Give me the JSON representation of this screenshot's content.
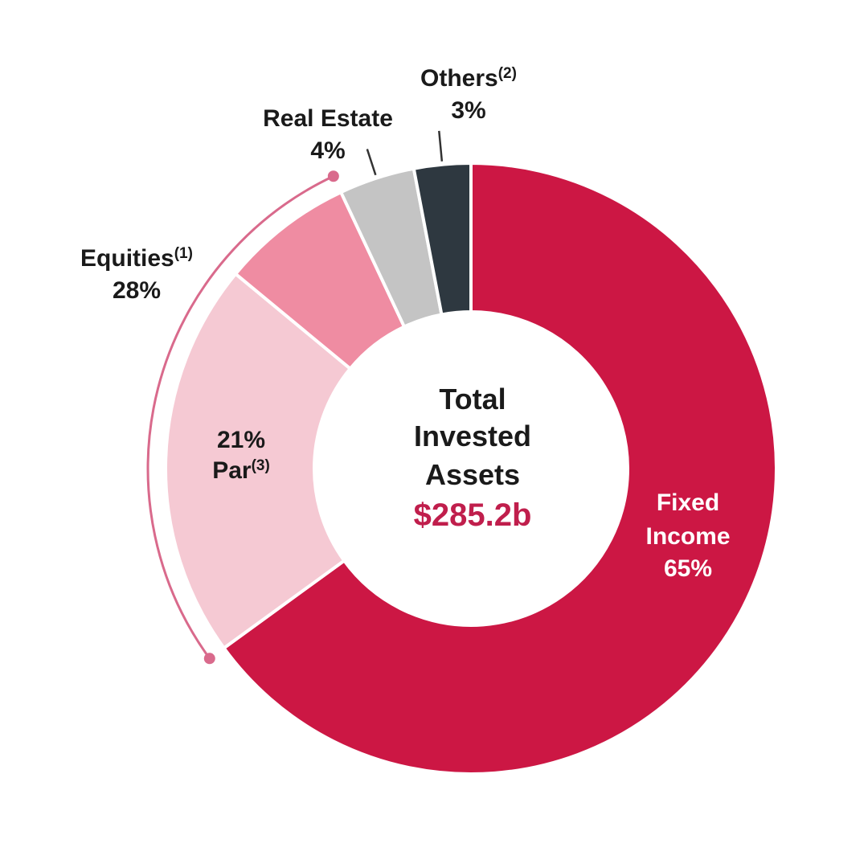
{
  "chart_data": {
    "type": "pie",
    "variant": "donut",
    "center": {
      "title_lines": [
        "Total",
        "Invested",
        "Assets"
      ],
      "value": "$285.2b",
      "value_color": "#c01e4c"
    },
    "slices": [
      {
        "key": "fixed",
        "value": 65,
        "color": "#cc1744",
        "label_lines": [
          "Fixed",
          "Income",
          "65%"
        ]
      },
      {
        "key": "par",
        "value": 21,
        "color": "#f5c9d3",
        "pct_label": "21%",
        "name": "Par",
        "footnote": "(3)"
      },
      {
        "key": "eq_other",
        "value": 7,
        "color": "#ef8ca2"
      },
      {
        "key": "realestate",
        "value": 4,
        "color": "#c4c4c4",
        "name": "Real Estate",
        "pct_label": "4%"
      },
      {
        "key": "others",
        "value": 3,
        "color": "#2e3840",
        "name": "Others",
        "footnote": "(2)",
        "pct_label": "3%"
      }
    ],
    "equities_bracket": {
      "name": "Equities",
      "footnote": "(1)",
      "pct_label": "28%",
      "value": 28,
      "color": "#d96a8c"
    }
  }
}
